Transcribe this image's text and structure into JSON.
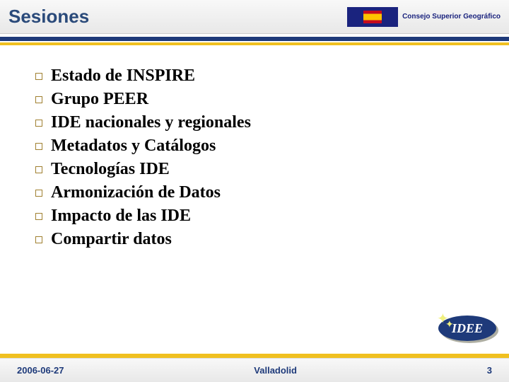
{
  "header": {
    "title": "Sesiones",
    "org_name": "Consejo Superior Geográfico"
  },
  "items": [
    {
      "label": "Estado de INSPIRE"
    },
    {
      "label": "Grupo PEER"
    },
    {
      "label": "IDE nacionales y regionales"
    },
    {
      "label": "Metadatos y Catálogos"
    },
    {
      "label": "Tecnologías IDE"
    },
    {
      "label": "Armonización de Datos"
    },
    {
      "label": "Impacto de las IDE"
    },
    {
      "label": "Compartir datos"
    }
  ],
  "badge": {
    "label": "IDEE"
  },
  "footer": {
    "date": "2006-06-27",
    "location": "Valladolid",
    "page": "3"
  },
  "colors": {
    "title_color": "#2a4a7a",
    "blue_bar": "#1e3a7a",
    "yellow_bar": "#f0c020",
    "bullet_border": "#a08030",
    "item_text": "#000000",
    "footer_text": "#1e3a7a",
    "badge_bg": "#1e3a7a",
    "badge_text": "#ffffff"
  },
  "typography": {
    "title_fontsize": 26,
    "item_fontsize": 24,
    "item_font": "Times New Roman",
    "footer_fontsize": 13,
    "org_fontsize": 10,
    "badge_fontsize": 18
  }
}
